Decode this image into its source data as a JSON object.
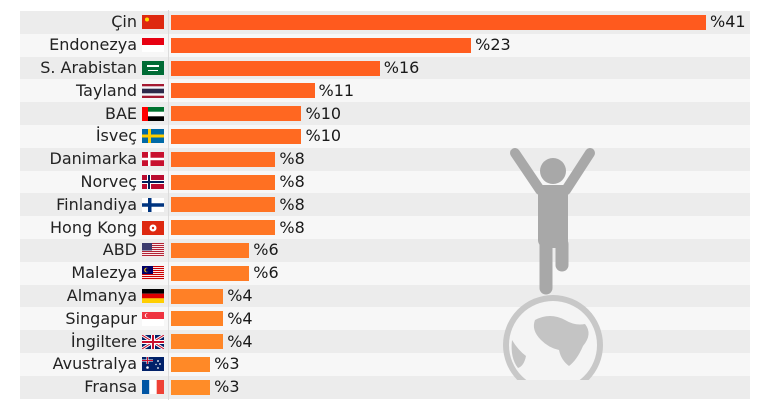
{
  "chart_data": {
    "type": "bar",
    "orientation": "horizontal",
    "title": "",
    "xlabel": "",
    "ylabel": "",
    "value_prefix": "%",
    "xlim": [
      0,
      41
    ],
    "grid": false,
    "categories": [
      "Çin",
      "Endonezya",
      "S. Arabistan",
      "Tayland",
      "BAE",
      "İsveç",
      "Danimarka",
      "Norveç",
      "Finlandiya",
      "Hong Kong",
      "ABD",
      "Malezya",
      "Almanya",
      "Singapur",
      "İngiltere",
      "Avustralya",
      "Fransa"
    ],
    "values": [
      41,
      23,
      16,
      11,
      10,
      10,
      8,
      8,
      8,
      8,
      6,
      6,
      4,
      4,
      4,
      3,
      3
    ],
    "labels": [
      "%41",
      "%23",
      "%16",
      "%11",
      "%10",
      "%10",
      "%8",
      "%8",
      "%8",
      "%8",
      "%6",
      "%6",
      "%4",
      "%4",
      "%4",
      "%3",
      "%3"
    ],
    "flags": [
      "china-flag",
      "indonesia-flag",
      "saudi-arabia-flag",
      "thailand-flag",
      "uae-flag",
      "sweden-flag",
      "denmark-flag",
      "norway-flag",
      "finland-flag",
      "hong-kong-flag",
      "usa-flag",
      "malaysia-flag",
      "germany-flag",
      "singapore-flag",
      "uk-flag",
      "australia-flag",
      "france-flag"
    ],
    "colors": {
      "bar_top": "#ff5a1e",
      "bar_bottom": "#ff8c28",
      "stripe_odd": "#ececec",
      "stripe_even": "#f7f7f7",
      "illustration": "#a8a8a8"
    }
  },
  "illustration": {
    "icon": "person-on-globe-icon"
  }
}
